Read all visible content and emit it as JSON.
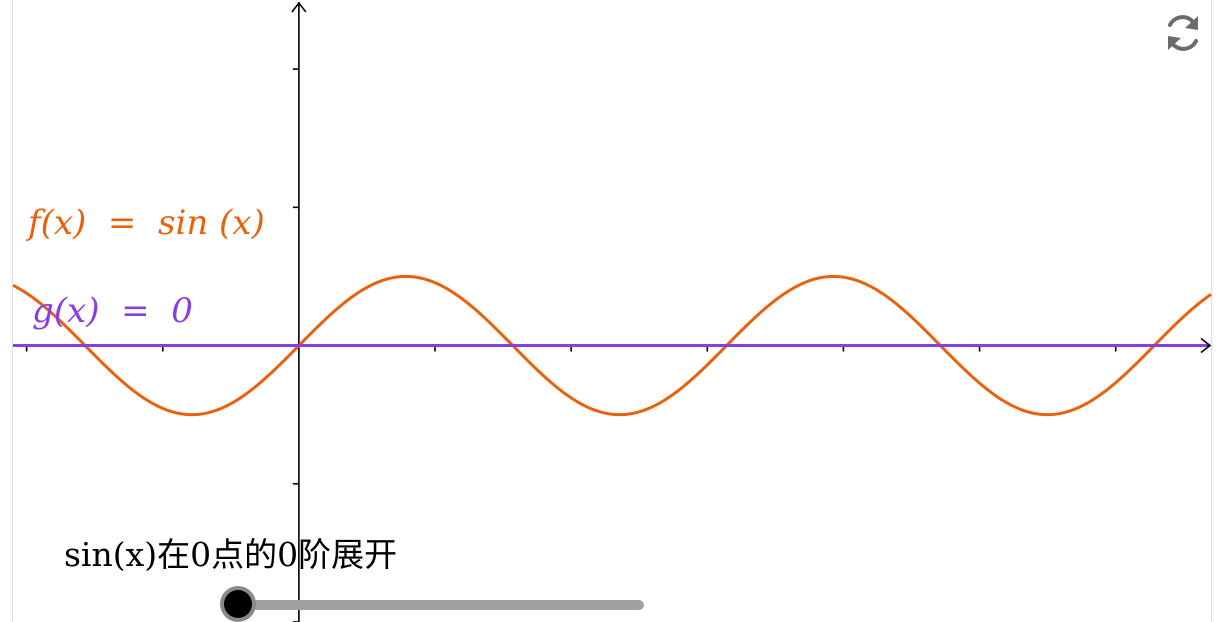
{
  "functions": {
    "f_label": "f(x)  =  sin (x)",
    "g_label": "g(x)  =  0"
  },
  "slider": {
    "caption": "sin(x)在0点的0阶展开",
    "value": 0,
    "min": 0,
    "max": 1
  },
  "colors": {
    "f": "#e8610c",
    "g": "#8b3ee0",
    "axis": "#000000"
  },
  "icons": {
    "reset": "refresh-icon"
  },
  "chart_data": {
    "type": "line",
    "title": "",
    "xlabel": "",
    "ylabel": "",
    "xlim": [
      -4.2,
      13.4
    ],
    "ylim": [
      -4.0,
      5.0
    ],
    "grid": false,
    "series": [
      {
        "name": "f(x) = sin(x)",
        "function": "sin(x)"
      },
      {
        "name": "g(x) = 0",
        "function": "0"
      }
    ]
  }
}
